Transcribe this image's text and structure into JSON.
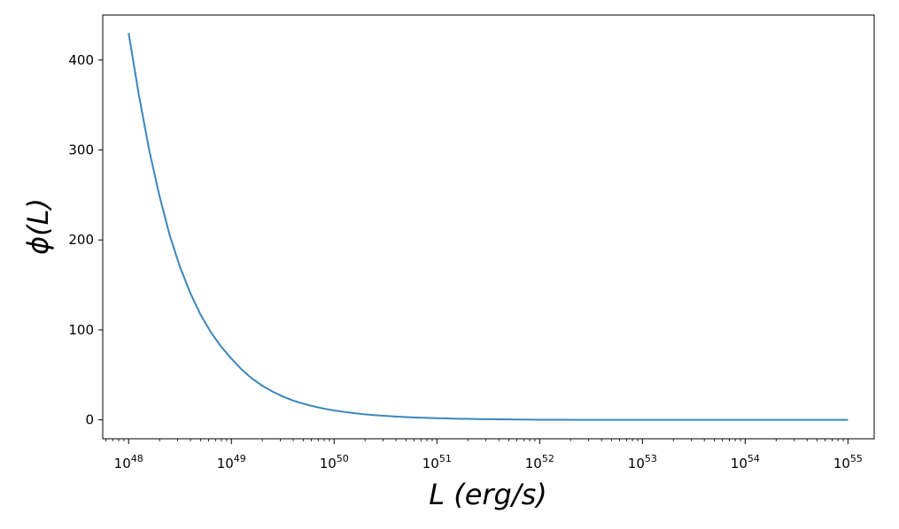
{
  "chart_data": {
    "type": "line",
    "xscale": "log",
    "xlim": [
      5.6e+47,
      1.8e+55
    ],
    "ylim": [
      -21,
      450
    ],
    "xlabel": "L (erg/s)",
    "ylabel": "ϕ(L)",
    "grid": false,
    "colors": {
      "line": "#3a86bc",
      "axes": "#000000",
      "background": "#ffffff"
    },
    "x_ticks": [
      {
        "base": "10",
        "exp": "48"
      },
      {
        "base": "10",
        "exp": "49"
      },
      {
        "base": "10",
        "exp": "50"
      },
      {
        "base": "10",
        "exp": "51"
      },
      {
        "base": "10",
        "exp": "52"
      },
      {
        "base": "10",
        "exp": "53"
      },
      {
        "base": "10",
        "exp": "54"
      },
      {
        "base": "10",
        "exp": "55"
      }
    ],
    "y_ticks": [
      {
        "value": 0,
        "label": "0"
      },
      {
        "value": 100,
        "label": "100"
      },
      {
        "value": 200,
        "label": "200"
      },
      {
        "value": 300,
        "label": "300"
      },
      {
        "value": 400,
        "label": "400"
      }
    ],
    "series": [
      {
        "x": [
          1e+48,
          1.2589e+48,
          1.5849e+48,
          1.9953e+48,
          2.5119e+48,
          3.1623e+48,
          3.9811e+48,
          5.0119e+48,
          6.3096e+48,
          7.9433e+48,
          1e+49,
          1.2589e+49,
          1.5849e+49,
          1.9953e+49,
          2.5119e+49,
          3.1623e+49,
          3.9811e+49,
          5.0119e+49,
          6.3096e+49,
          7.9433e+49,
          1e+50,
          1.2589e+50,
          1.5849e+50,
          1.9953e+50,
          2.5119e+50,
          3.1623e+50,
          3.9811e+50,
          5.0119e+50,
          6.3096e+50,
          7.9433e+50,
          1e+51,
          1.2589e+51,
          1.5849e+51,
          1.9953e+51,
          2.5119e+51,
          3.1623e+51,
          3.9811e+51,
          5.0119e+51,
          6.3096e+51,
          7.9433e+51,
          1e+52,
          1.5849e+52,
          2.5119e+52,
          3.9811e+52,
          6.3096e+52,
          1e+53,
          3.1623e+53,
          1e+54,
          3.1623e+54,
          1e+55
        ],
        "y": [
          430,
          361,
          300,
          249,
          205,
          170,
          141,
          117,
          97.5,
          81.5,
          68,
          56,
          46,
          38,
          31.5,
          26,
          21.5,
          18,
          15,
          12.5,
          10.5,
          8.8,
          7.4,
          6.2,
          5.2,
          4.4,
          3.7,
          3.1,
          2.6,
          2.2,
          1.9,
          1.6,
          1.3,
          1.1,
          0.9,
          0.75,
          0.6,
          0.5,
          0.4,
          0.3,
          0.2,
          0.1,
          0.05,
          0.02,
          0.01,
          0,
          0,
          0,
          0,
          0
        ]
      }
    ]
  }
}
